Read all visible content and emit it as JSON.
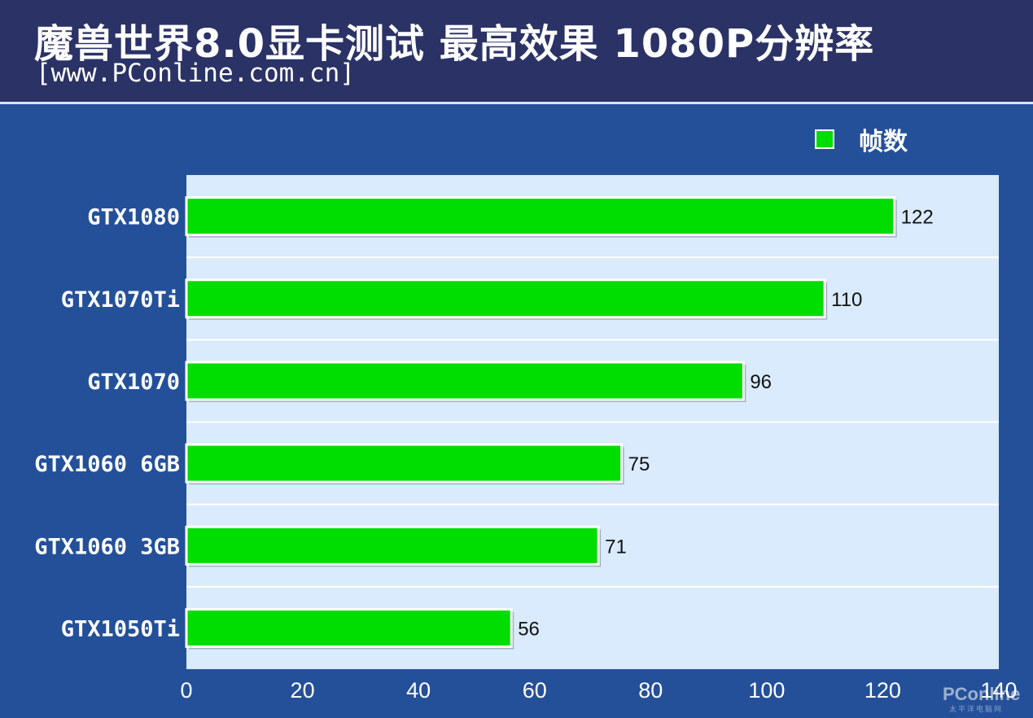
{
  "header": {
    "title": "魔兽世界8.0显卡测试 最高效果 1080P分辨率",
    "subtitle": "[www.PConline.com.cn]"
  },
  "legend": {
    "label": "帧数"
  },
  "colors": {
    "bar": "#00dd00",
    "plot_bg": "#d9ebfd",
    "page_bg": "#24509a",
    "header_bg": "#2a3266"
  },
  "chart_data": {
    "type": "bar",
    "orientation": "horizontal",
    "title": "魔兽世界8.0显卡测试 最高效果 1080P分辨率",
    "xlabel": "",
    "ylabel": "",
    "categories": [
      "GTX1080",
      "GTX1070Ti",
      "GTX1070",
      "GTX1060 6GB",
      "GTX1060 3GB",
      "GTX1050Ti"
    ],
    "series": [
      {
        "name": "帧数",
        "values": [
          122,
          110,
          96,
          75,
          71,
          56
        ]
      }
    ],
    "xlim": [
      0,
      140
    ],
    "xticks": [
      0,
      20,
      40,
      60,
      80,
      100,
      120,
      140
    ],
    "data_labels": true,
    "legend_position": "top-right",
    "grid": "horizontal"
  },
  "watermark": {
    "logo": "PConline",
    "sub": "太平洋电脑网"
  }
}
